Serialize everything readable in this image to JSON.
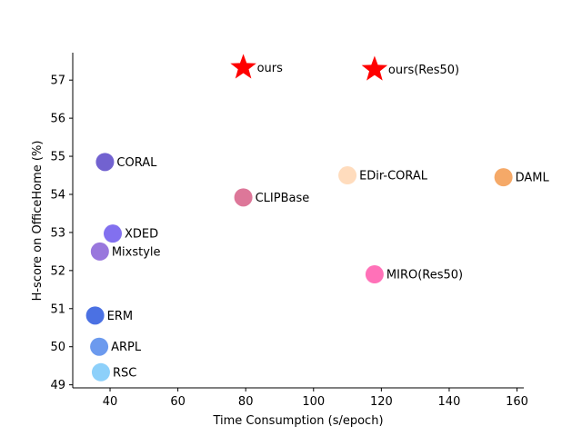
{
  "chart_data": {
    "type": "scatter",
    "title": "",
    "xlabel": "Time Consumption (s/epoch)",
    "ylabel": "H-score on OfficeHome (%)",
    "xlim": [
      29,
      162
    ],
    "ylim": [
      48.92,
      57.72
    ],
    "xticks": [
      40,
      60,
      80,
      100,
      120,
      140,
      160
    ],
    "yticks": [
      49,
      50,
      51,
      52,
      53,
      54,
      55,
      56,
      57
    ],
    "grid": false,
    "legend": "none",
    "points": [
      {
        "label": "ours",
        "x": 79.3,
        "y": 57.33,
        "marker": "star",
        "color": "#ff0000"
      },
      {
        "label": "ours(Res50)",
        "x": 118.0,
        "y": 57.28,
        "marker": "star",
        "color": "#ff0000"
      },
      {
        "label": "CORAL",
        "x": 38.5,
        "y": 54.85,
        "marker": "circle",
        "color": "#6a5acd"
      },
      {
        "label": "EDir-CORAL",
        "x": 110.0,
        "y": 54.5,
        "marker": "circle",
        "color": "#ffdab9"
      },
      {
        "label": "DAML",
        "x": 156.0,
        "y": 54.45,
        "marker": "circle",
        "color": "#f4a460"
      },
      {
        "label": "CLIPBase",
        "x": 79.3,
        "y": 53.92,
        "marker": "circle",
        "color": "#db7093"
      },
      {
        "label": "XDED",
        "x": 40.8,
        "y": 52.97,
        "marker": "circle",
        "color": "#7b68ee"
      },
      {
        "label": "Mixstyle",
        "x": 37.0,
        "y": 52.5,
        "marker": "circle",
        "color": "#9370db"
      },
      {
        "label": "MIRO(Res50)",
        "x": 118.0,
        "y": 51.9,
        "marker": "circle",
        "color": "#ff69b4"
      },
      {
        "label": "ERM",
        "x": 35.6,
        "y": 50.82,
        "marker": "circle",
        "color": "#4169e1"
      },
      {
        "label": "ARPL",
        "x": 36.8,
        "y": 50.0,
        "marker": "circle",
        "color": "#6495ed"
      },
      {
        "label": "RSC",
        "x": 37.3,
        "y": 49.33,
        "marker": "circle",
        "color": "#87cefa"
      }
    ]
  }
}
